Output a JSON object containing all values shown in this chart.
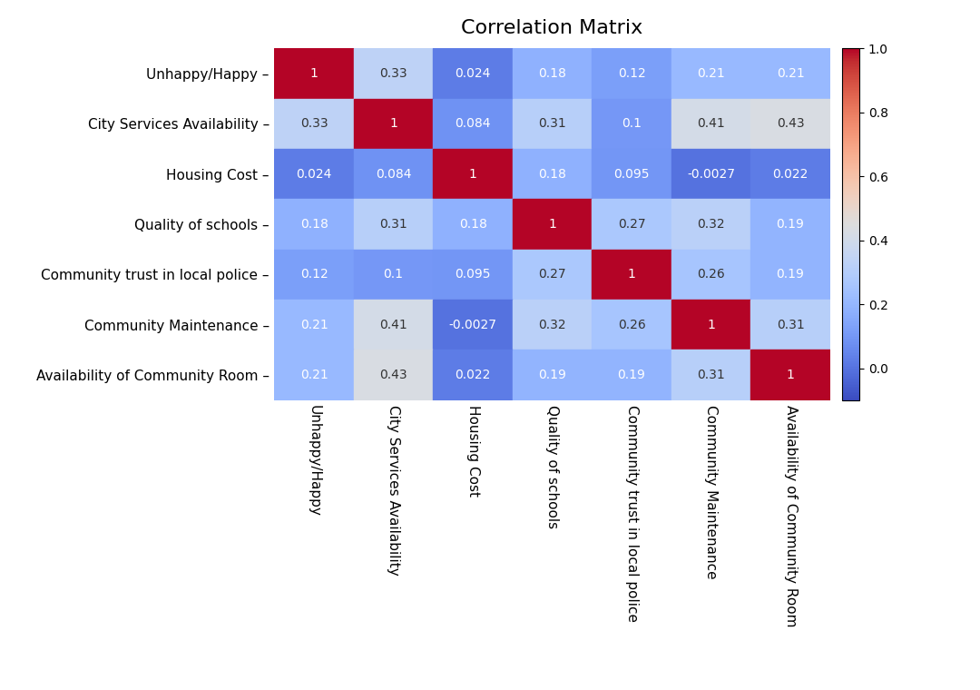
{
  "labels": [
    "Unhappy/Happy",
    "City Services Availability",
    "Housing Cost",
    "Quality of schools",
    "Community trust in local police",
    "Community Maintenance",
    "Availability of Community Room"
  ],
  "annot": [
    [
      "1",
      "0.33",
      "0.024",
      "0.18",
      "0.12",
      "0.21",
      "0.21"
    ],
    [
      "0.33",
      "1",
      "0.084",
      "0.31",
      "0.1",
      "0.41",
      "0.43"
    ],
    [
      "0.024",
      "0.084",
      "1",
      "0.18",
      "0.095",
      "-0.0027",
      "0.022"
    ],
    [
      "0.18",
      "0.31",
      "0.18",
      "1",
      "0.27",
      "0.32",
      "0.19"
    ],
    [
      "0.12",
      "0.1",
      "0.095",
      "0.27",
      "1",
      "0.26",
      "0.19"
    ],
    [
      "0.21",
      "0.41",
      "-0.0027",
      "0.32",
      "0.26",
      "1",
      "0.31"
    ],
    [
      "0.21",
      "0.43",
      "0.022",
      "0.19",
      "0.19",
      "0.31",
      "1"
    ]
  ],
  "matrix": [
    [
      1.0,
      0.33,
      0.024,
      0.18,
      0.12,
      0.21,
      0.21
    ],
    [
      0.33,
      1.0,
      0.084,
      0.31,
      0.1,
      0.41,
      0.43
    ],
    [
      0.024,
      0.084,
      1.0,
      0.18,
      0.095,
      -0.0027,
      0.022
    ],
    [
      0.18,
      0.31,
      0.18,
      1.0,
      0.27,
      0.32,
      0.19
    ],
    [
      0.12,
      0.1,
      0.095,
      0.27,
      1.0,
      0.26,
      0.19
    ],
    [
      0.21,
      0.41,
      -0.0027,
      0.32,
      0.26,
      1.0,
      0.31
    ],
    [
      0.21,
      0.43,
      0.022,
      0.19,
      0.19,
      0.31,
      1.0
    ]
  ],
  "title": "Correlation Matrix",
  "vmin": -0.1,
  "vmax": 1.0,
  "cmap": "coolwarm",
  "title_fontsize": 16,
  "label_fontsize": 11,
  "annot_fontsize": 10,
  "cbar_ticks": [
    0.0,
    0.2,
    0.4,
    0.6,
    0.8,
    1.0
  ],
  "figsize": [
    10.8,
    7.6
  ],
  "dpi": 100
}
